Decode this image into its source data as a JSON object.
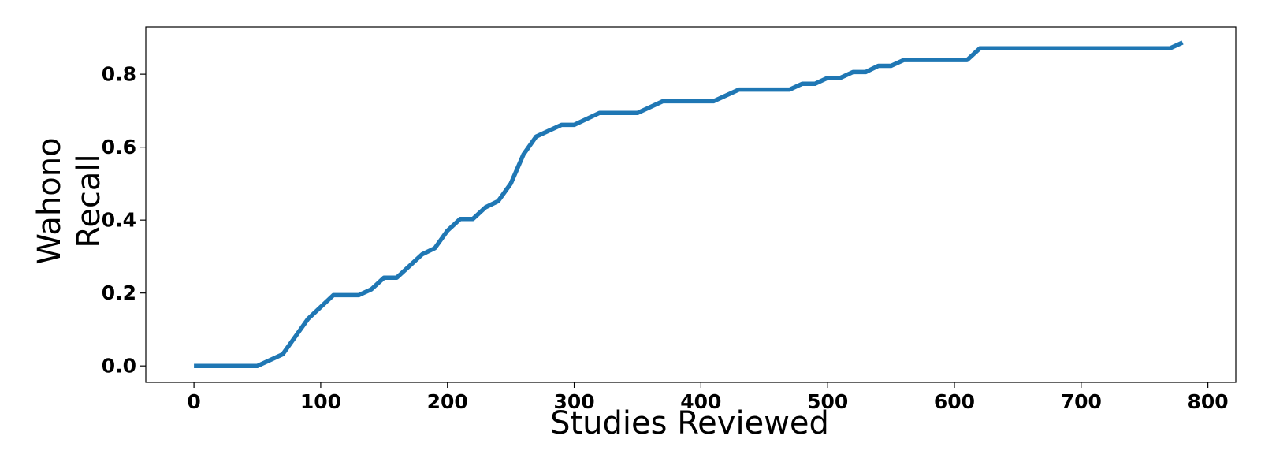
{
  "chart_data": {
    "type": "line",
    "title": "",
    "xlabel": "Studies Reviewed",
    "ylabel_lines": [
      "Wahono",
      "Recall"
    ],
    "xlim": [
      -38,
      822
    ],
    "ylim": [
      -0.045,
      0.93
    ],
    "xticks": [
      0,
      100,
      200,
      300,
      400,
      500,
      600,
      700,
      800
    ],
    "yticks": [
      0.0,
      0.2,
      0.4,
      0.6,
      0.8
    ],
    "grid": false,
    "legend": "none",
    "series": [
      {
        "color": "#1f77b4",
        "x": [
          0,
          50,
          70,
          90,
          110,
          130,
          140,
          150,
          160,
          180,
          190,
          200,
          210,
          220,
          230,
          240,
          250,
          260,
          270,
          290,
          300,
          320,
          350,
          370,
          410,
          430,
          470,
          480,
          490,
          500,
          510,
          520,
          530,
          540,
          550,
          560,
          610,
          620,
          770,
          780
        ],
        "y": [
          0.0,
          0.0,
          0.032,
          0.129,
          0.194,
          0.194,
          0.21,
          0.242,
          0.242,
          0.306,
          0.323,
          0.371,
          0.403,
          0.403,
          0.435,
          0.452,
          0.5,
          0.58,
          0.629,
          0.661,
          0.661,
          0.694,
          0.694,
          0.726,
          0.726,
          0.758,
          0.758,
          0.774,
          0.774,
          0.79,
          0.79,
          0.806,
          0.806,
          0.823,
          0.823,
          0.839,
          0.839,
          0.871,
          0.871,
          0.887
        ]
      }
    ]
  }
}
